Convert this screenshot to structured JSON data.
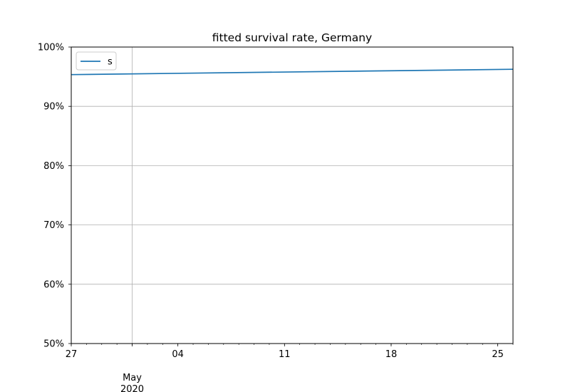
{
  "chart_data": {
    "type": "line",
    "title": "fitted survival rate, Germany",
    "xlabel": "",
    "ylabel": "",
    "x_ticks_major": [
      {
        "date": "2020-05-01",
        "label": "May\n2020"
      }
    ],
    "x_ticks_minor_labeled": [
      {
        "date": "2020-04-27",
        "label": "27"
      },
      {
        "date": "2020-05-04",
        "label": "04"
      },
      {
        "date": "2020-05-11",
        "label": "11"
      },
      {
        "date": "2020-05-18",
        "label": "18"
      },
      {
        "date": "2020-05-25",
        "label": "25"
      }
    ],
    "xlim": [
      "2020-04-27",
      "2020-05-26"
    ],
    "y_ticks": [
      "50%",
      "60%",
      "70%",
      "80%",
      "90%",
      "100%"
    ],
    "ylim": [
      0.5,
      1.0
    ],
    "grid": true,
    "legend_position": "top-left",
    "series": [
      {
        "name": "s",
        "color": "#1f77b4",
        "x": [
          "2020-04-27",
          "2020-05-26"
        ],
        "y": [
          0.9535,
          0.9625
        ]
      }
    ]
  }
}
